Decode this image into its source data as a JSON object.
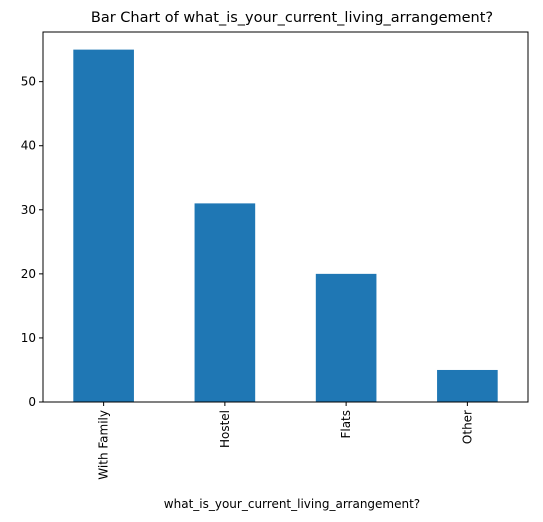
{
  "chart_data": {
    "type": "bar",
    "title": "Bar Chart of what_is_your_current_living_arrangement?",
    "xlabel": "what_is_your_current_living_arrangement?",
    "ylabel": "",
    "categories": [
      "With Family",
      "Hostel",
      "Flats",
      "Other"
    ],
    "values": [
      55,
      31,
      20,
      5
    ],
    "ylim": [
      0,
      57.75
    ],
    "yticks": [
      0,
      10,
      20,
      30,
      40,
      50
    ],
    "x_tick_rotation": 90,
    "grid": false,
    "legend": "none",
    "bar_color": "#1f77b4"
  }
}
